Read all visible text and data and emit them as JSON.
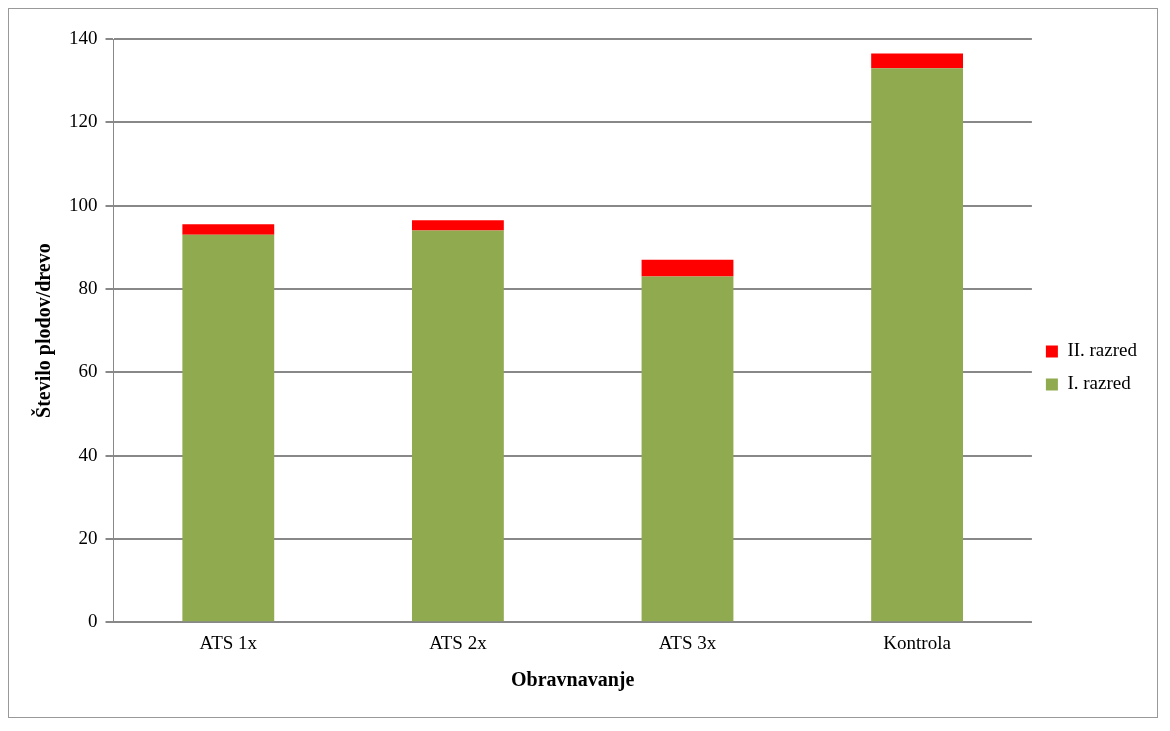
{
  "chart_data": {
    "type": "bar",
    "stacked": true,
    "categories": [
      "ATS 1x",
      "ATS 2x",
      "ATS 3x",
      "Kontrola"
    ],
    "series": [
      {
        "name": "I. razred",
        "color": "#8faa4f",
        "values": [
          93,
          94,
          83,
          133
        ]
      },
      {
        "name": "II. razred",
        "color": "#ff0000",
        "values": [
          2.5,
          2.5,
          4,
          3.5
        ]
      }
    ],
    "xlabel": "Obravnavanje",
    "ylabel": "Število plodov/drevo",
    "ylim": [
      0,
      140
    ],
    "yticks": [
      0,
      20,
      40,
      60,
      80,
      100,
      120,
      140
    ],
    "grid": "y",
    "legend": "right"
  }
}
